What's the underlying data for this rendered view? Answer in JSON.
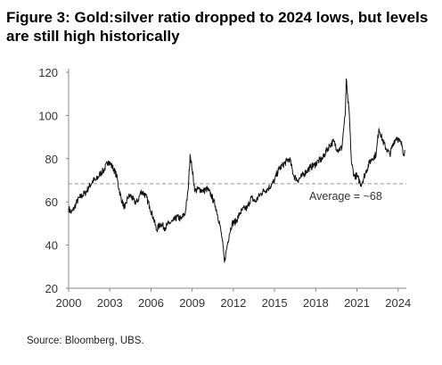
{
  "title": "Figure 3: Gold:silver ratio dropped to 2024 lows, but levels are still high historically",
  "source": "Source: Bloomberg, UBS.",
  "colors": {
    "series": "#111111",
    "average_line": "#999999",
    "axis": "#888888"
  },
  "chart_data": {
    "type": "line",
    "title": "Figure 3: Gold:silver ratio dropped to 2024 lows, but levels are still high historically",
    "xlabel": "",
    "ylabel": "",
    "xlim": [
      2000,
      2024.6
    ],
    "ylim": [
      20,
      120
    ],
    "xticks": [
      "2000",
      "2003",
      "2006",
      "2009",
      "2012",
      "2015",
      "2018",
      "2021",
      "2024"
    ],
    "yticks": [
      "20",
      "40",
      "60",
      "80",
      "100",
      "120"
    ],
    "grid": false,
    "legend": "none",
    "series": [
      {
        "x": [
          2000.0,
          2000.2,
          2000.4,
          2000.6,
          2000.8,
          2001.0,
          2001.2,
          2001.5,
          2001.8,
          2002.0,
          2002.3,
          2002.6,
          2002.9,
          2003.1,
          2003.3,
          2003.5,
          2003.7,
          2003.9,
          2004.1,
          2004.3,
          2004.5,
          2004.8,
          2005.0,
          2005.3,
          2005.6,
          2005.9,
          2006.2,
          2006.4,
          2006.7,
          2007.0,
          2007.3,
          2007.6,
          2007.9,
          2008.2,
          2008.5,
          2008.7,
          2008.85,
          2009.0,
          2009.2,
          2009.5,
          2009.8,
          2010.1,
          2010.4,
          2010.7,
          2011.0,
          2011.2,
          2011.35,
          2011.5,
          2011.7,
          2011.9,
          2012.2,
          2012.5,
          2012.8,
          2013.0,
          2013.3,
          2013.6,
          2013.9,
          2014.2,
          2014.5,
          2014.8,
          2015.0,
          2015.3,
          2015.6,
          2015.9,
          2016.1,
          2016.4,
          2016.7,
          2017.0,
          2017.3,
          2017.6,
          2017.9,
          2018.2,
          2018.5,
          2018.8,
          2019.0,
          2019.3,
          2019.6,
          2019.9,
          2020.05,
          2020.15,
          2020.22,
          2020.3,
          2020.45,
          2020.6,
          2020.8,
          2021.0,
          2021.3,
          2021.6,
          2021.9,
          2022.1,
          2022.4,
          2022.6,
          2022.9,
          2023.1,
          2023.4,
          2023.7,
          2023.9,
          2024.1,
          2024.3,
          2024.4,
          2024.5
        ],
        "values": [
          57,
          55,
          57,
          60,
          62,
          63,
          64,
          67,
          70,
          70,
          73,
          75,
          79,
          77,
          75,
          72,
          65,
          60,
          57,
          62,
          63,
          60,
          60,
          65,
          63,
          58,
          52,
          47,
          50,
          48,
          50,
          51,
          53,
          52,
          55,
          65,
          82,
          75,
          65,
          66,
          65,
          66,
          63,
          58,
          50,
          42,
          32,
          38,
          45,
          50,
          51,
          55,
          57,
          57,
          62,
          60,
          63,
          65,
          66,
          68,
          70,
          75,
          77,
          79,
          80,
          72,
          70,
          72,
          74,
          76,
          77,
          79,
          80,
          84,
          86,
          88,
          84,
          85,
          95,
          100,
          117,
          110,
          100,
          78,
          72,
          72,
          68,
          73,
          78,
          80,
          82,
          94,
          88,
          85,
          82,
          88,
          90,
          88,
          86,
          82,
          84
        ]
      }
    ],
    "reference_line": {
      "value": 68,
      "label": "Average = ~68",
      "style": "dashed"
    }
  }
}
